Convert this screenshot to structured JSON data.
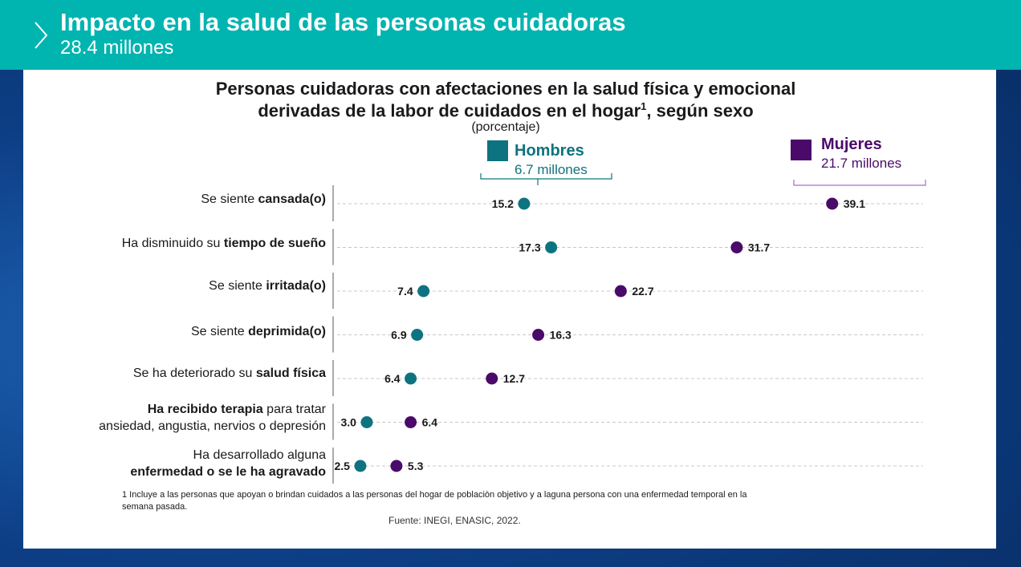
{
  "header": {
    "title": "Impacto en la salud de las personas cuidadoras",
    "subtitle": "28.4 millones"
  },
  "colors": {
    "header_bg": "#00b4b0",
    "hombres": "#0e7380",
    "mujeres": "#4a0a6a"
  },
  "chart_data": {
    "type": "scatter",
    "title_line1": "Personas cuidadoras con afectaciones en la salud física y emocional",
    "title_line2": "derivadas de la labor de cuidados en el hogar",
    "title_sup": "1",
    "title_line2_end": ", según sexo",
    "unit": "(porcentaje)",
    "categories": [
      {
        "pre": "Se siente ",
        "bold": "cansada(o)",
        "post": ""
      },
      {
        "pre": "Ha disminuido su ",
        "bold": "tiempo de sueño",
        "post": ""
      },
      {
        "pre": "Se siente ",
        "bold": "irritada(o)",
        "post": ""
      },
      {
        "pre": "Se siente ",
        "bold": "deprimida(o)",
        "post": ""
      },
      {
        "pre": "Se ha deteriorado su ",
        "bold": "salud física",
        "post": ""
      },
      {
        "line1_bold": "Ha recibido terapia",
        "line1_rest": " para tratar",
        "line2": "ansiedad, angustia, nervios o depresión"
      },
      {
        "line1": "Ha desarrollado alguna",
        "line2_bold": "enfermedad o se le ha agravado"
      }
    ],
    "series": [
      {
        "name": "Hombres",
        "total": "6.7 millones",
        "values": [
          15.2,
          17.3,
          7.4,
          6.9,
          6.4,
          3.0,
          2.5
        ],
        "labels": [
          "15.2",
          "17.3",
          "7.4",
          "6.9",
          "6.4",
          "3.0",
          "2.5"
        ]
      },
      {
        "name": "Mujeres",
        "total": "21.7 millones",
        "values": [
          39.1,
          31.7,
          22.7,
          16.3,
          12.7,
          6.4,
          5.3
        ],
        "labels": [
          "39.1",
          "31.7",
          "22.7",
          "16.3",
          "12.7",
          "6.4",
          "5.3"
        ]
      }
    ],
    "grid": "horizontal dashed",
    "legend": "top"
  },
  "footnote": "1 Incluye a las personas que apoyan o brindan cuidados a las personas del hogar de poblaciòn objetivo y a laguna persona con una enfermedad temporal en la semana pasada.",
  "source": "Fuente: INEGI, ENASIC, 2022."
}
